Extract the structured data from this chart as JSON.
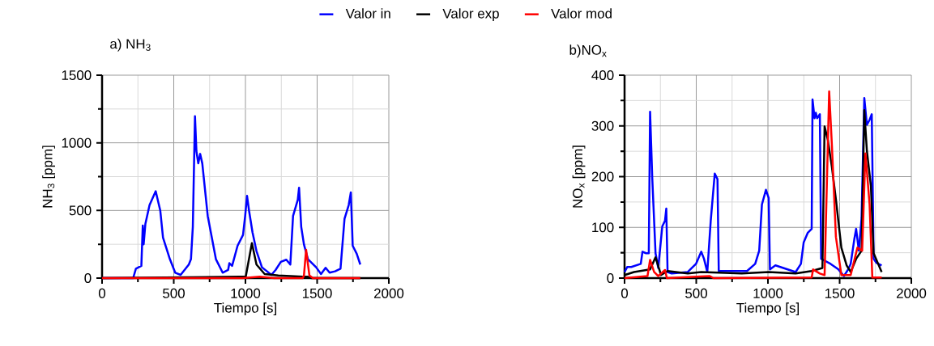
{
  "chart_data": [
    {
      "type": "line",
      "title": "a) NH$_{3}$",
      "xlabel": "Tiempo [s]",
      "ylabel": "NH$_{3}$ [ppm]",
      "xlim": [
        0,
        2000
      ],
      "xticks": [
        0,
        500,
        1000,
        1500,
        2000
      ],
      "ylim": [
        0,
        1500
      ],
      "yticks": [
        0,
        500,
        1000,
        1500
      ],
      "grid": true,
      "legend": "top",
      "series": [
        {
          "name": "Valor in",
          "color": "#0000ff",
          "x": [
            0,
            217,
            236,
            274,
            284,
            290,
            302,
            331,
            374,
            406,
            425,
            473,
            510,
            548,
            605,
            620,
            633,
            648,
            658,
            671,
            684,
            699,
            737,
            794,
            841,
            879,
            888,
            907,
            945,
            983,
            998,
            1011,
            1025,
            1049,
            1077,
            1115,
            1181,
            1210,
            1247,
            1285,
            1313,
            1332,
            1365,
            1374,
            1389,
            1408,
            1436,
            1493,
            1527,
            1559,
            1587,
            1625,
            1663,
            1691,
            1720,
            1735,
            1748,
            1776,
            1801
          ],
          "values": [
            0,
            0,
            70,
            90,
            389,
            250,
            400,
            539,
            642,
            499,
            299,
            140,
            40,
            24,
            100,
            140,
            379,
            1197,
            938,
            848,
            918,
            848,
            459,
            140,
            40,
            60,
            110,
            90,
            239,
            319,
            459,
            608,
            499,
            339,
            200,
            80,
            24,
            60,
            120,
            136,
            100,
            459,
            579,
            668,
            379,
            249,
            140,
            80,
            30,
            76,
            40,
            50,
            70,
            439,
            539,
            634,
            239,
            180,
            100
          ]
        },
        {
          "name": "Valor exp",
          "color": "#000000",
          "x": [
            0,
            960,
            1002,
            1045,
            1077,
            1134,
            1229,
            1399,
            1436,
            1460,
            1801
          ],
          "values": [
            0,
            10,
            10,
            259,
            100,
            30,
            20,
            10,
            10,
            0,
            0
          ]
        },
        {
          "name": "Valor mod",
          "color": "#ff0000",
          "x": [
            0,
            980,
            1100,
            1200,
            1400,
            1408,
            1423,
            1446,
            1470,
            1801
          ],
          "values": [
            0,
            0,
            10,
            0,
            0,
            20,
            209,
            20,
            0,
            0
          ]
        }
      ]
    },
    {
      "type": "line",
      "title": "b)NO$_{x}$",
      "xlabel": "Tiempo [s]",
      "ylabel": "NO$_{x}$ [ppm]",
      "xlim": [
        0,
        2000
      ],
      "xticks": [
        0,
        500,
        1000,
        1500,
        2000
      ],
      "ylim": [
        0,
        400
      ],
      "yticks": [
        0,
        100,
        200,
        300,
        400
      ],
      "grid": true,
      "legend": false,
      "series": [
        {
          "color": "#0000ff",
          "x": [
            0,
            19,
            47,
            113,
            125,
            150,
            169,
            178,
            193,
            216,
            235,
            263,
            282,
            291,
            300,
            329,
            441,
            498,
            535,
            554,
            577,
            601,
            629,
            648,
            657,
            704,
            854,
            911,
            939,
            958,
            986,
            1005,
            1014,
            1052,
            1193,
            1230,
            1249,
            1277,
            1305,
            1311,
            1325,
            1334,
            1343,
            1362,
            1371,
            1437,
            1492,
            1530,
            1559,
            1577,
            1602,
            1615,
            1634,
            1653,
            1672,
            1690,
            1709,
            1724,
            1737,
            1756,
            1793
          ],
          "values": [
            12,
            22,
            22,
            28,
            52,
            49,
            49,
            328,
            198,
            49,
            20,
            102,
            113,
            137,
            12,
            9,
            12,
            28,
            52,
            38,
            12,
            113,
            206,
            195,
            14,
            14,
            14,
            28,
            54,
            145,
            174,
            158,
            17,
            25,
            12,
            28,
            70,
            89,
            97,
            352,
            315,
            326,
            315,
            323,
            38,
            28,
            17,
            4,
            17,
            28,
            76,
            97,
            54,
            118,
            355,
            302,
            312,
            323,
            38,
            30,
            25
          ]
        },
        {
          "color": "#000000",
          "x": [
            0,
            66,
            178,
            216,
            254,
            300,
            441,
            535,
            817,
            1005,
            1193,
            1305,
            1380,
            1395,
            1418,
            1446,
            1474,
            1512,
            1549,
            1577,
            1615,
            1653,
            1672,
            1690,
            1718,
            1737,
            1793
          ],
          "values": [
            6,
            12,
            17,
            41,
            6,
            14,
            9,
            12,
            9,
            12,
            9,
            14,
            20,
            299,
            272,
            219,
            155,
            60,
            25,
            12,
            38,
            54,
            331,
            251,
            182,
            49,
            12
          ]
        },
        {
          "color": "#ff0000",
          "x": [
            0,
            160,
            178,
            206,
            235,
            282,
            295,
            592,
            620,
            1305,
            1315,
            1362,
            1395,
            1427,
            1446,
            1474,
            1512,
            1577,
            1624,
            1657,
            1680,
            1709,
            1728,
            1793
          ],
          "values": [
            0,
            4,
            36,
            12,
            4,
            16,
            0,
            4,
            0,
            1,
            17,
            9,
            6,
            368,
            262,
            81,
            6,
            6,
            60,
            54,
            246,
            145,
            1,
            1
          ]
        }
      ]
    }
  ]
}
